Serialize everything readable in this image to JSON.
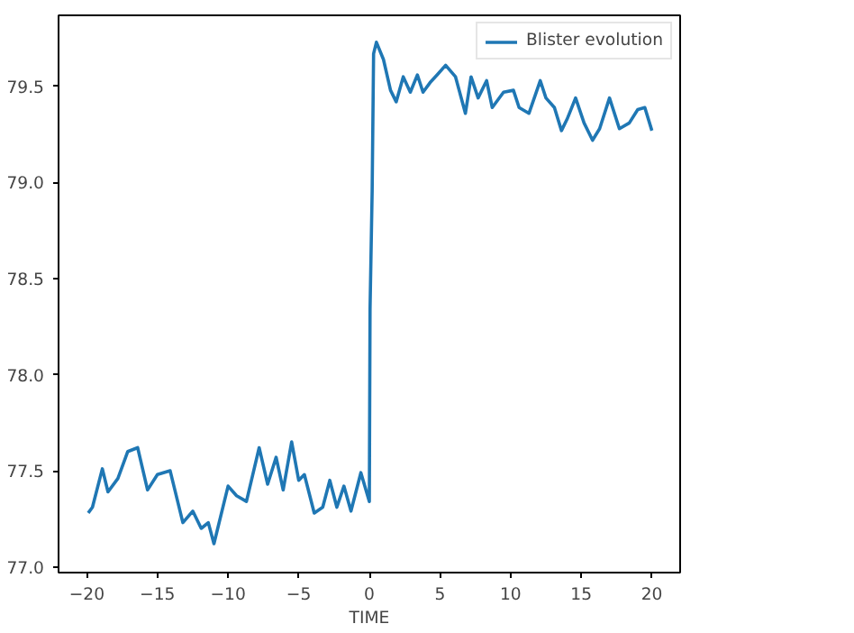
{
  "chart_data": {
    "type": "line",
    "xlabel": "TIME",
    "xlim": [
      -22,
      22
    ],
    "ylim": [
      76.97,
      79.87
    ],
    "xticks": [
      {
        "value": -20,
        "label": "−20"
      },
      {
        "value": -15,
        "label": "−15"
      },
      {
        "value": -10,
        "label": "−10"
      },
      {
        "value": -5,
        "label": "−5"
      },
      0,
      5,
      10,
      15,
      20
    ],
    "yticks": [
      {
        "value": 77.0,
        "label": "77.0"
      },
      77.5,
      {
        "value": 78.0,
        "label": "78.0"
      },
      78.5,
      {
        "value": 79.0,
        "label": "79.0"
      },
      79.5
    ],
    "grid": false,
    "legend": "top right",
    "marker": "none",
    "line_style": "solid",
    "series": [
      {
        "name": "Blister evolution",
        "color": "#1f77b4",
        "x": [
          -19.9,
          -19.6,
          -18.9,
          -18.5,
          -17.8,
          -17.1,
          -16.4,
          -15.7,
          -15.0,
          -14.1,
          -13.2,
          -12.5,
          -11.9,
          -11.4,
          -11.0,
          -10.0,
          -9.4,
          -8.7,
          -7.8,
          -7.2,
          -6.6,
          -6.1,
          -5.5,
          -5.0,
          -4.6,
          -3.9,
          -3.3,
          -2.8,
          -2.3,
          -1.8,
          -1.3,
          -0.6,
          0.0,
          0.05,
          0.2,
          0.3,
          0.5,
          1.0,
          1.5,
          1.9,
          2.4,
          2.9,
          3.4,
          3.8,
          4.3,
          4.8,
          5.4,
          6.1,
          6.8,
          7.2,
          7.7,
          8.3,
          8.7,
          9.5,
          10.2,
          10.6,
          11.3,
          12.1,
          12.5,
          13.1,
          13.6,
          14.0,
          14.6,
          15.2,
          15.8,
          16.3,
          17.0,
          17.7,
          18.4,
          19.0,
          19.5,
          20.0
        ],
        "values": [
          77.28,
          77.31,
          77.51,
          77.39,
          77.46,
          77.6,
          77.62,
          77.4,
          77.48,
          77.5,
          77.23,
          77.29,
          77.2,
          77.23,
          77.12,
          77.42,
          77.37,
          77.34,
          77.62,
          77.43,
          77.57,
          77.4,
          77.65,
          77.45,
          77.48,
          77.28,
          77.31,
          77.45,
          77.31,
          77.42,
          77.29,
          77.49,
          77.34,
          78.34,
          78.96,
          79.67,
          79.73,
          79.64,
          79.48,
          79.42,
          79.55,
          79.47,
          79.56,
          79.47,
          79.52,
          79.56,
          79.61,
          79.55,
          79.36,
          79.55,
          79.44,
          79.53,
          79.39,
          79.47,
          79.48,
          79.39,
          79.36,
          79.53,
          79.44,
          79.39,
          79.27,
          79.33,
          79.44,
          79.31,
          79.22,
          79.28,
          79.44,
          79.28,
          79.31,
          79.38,
          79.39,
          79.27
        ]
      }
    ]
  }
}
